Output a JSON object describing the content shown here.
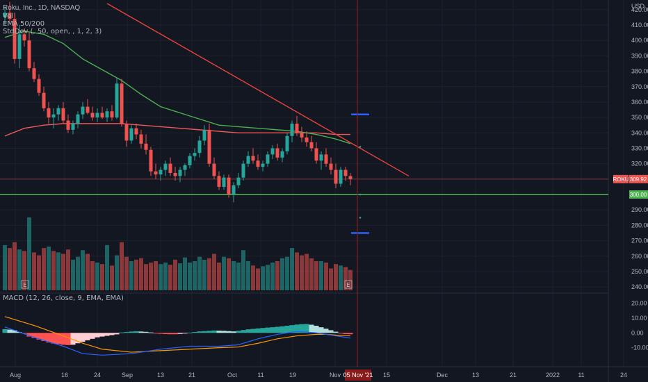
{
  "header": {
    "symbol": "Roku, Inc.",
    "interval": "1D",
    "exchange": "NASDAQ",
    "vol_label": "Vol",
    "ema_label": "EMA 50/200",
    "stddev_label": "StdDev (, 50, open, , 1, 2, 3)",
    "macd_label": "MACD (12, 26, close, 9, EMA, EMA)"
  },
  "price_axis": {
    "currency": "USD",
    "ticks": [
      "420.00",
      "410.00",
      "400.00",
      "390.00",
      "380.00",
      "370.00",
      "360.00",
      "350.00",
      "340.00",
      "330.00",
      "320.00",
      "310.00",
      "300.00",
      "290.00",
      "280.00",
      "270.00",
      "260.00",
      "250.00",
      "240.00"
    ],
    "last_price": "309.92",
    "last_price_tag": "ROKU",
    "hline_value": "300.00",
    "marker": "E"
  },
  "macd_axis": {
    "ticks": [
      "20.00",
      "10.00",
      "0.00",
      "-10.00"
    ]
  },
  "time_axis": {
    "labels": [
      "Aug",
      "16",
      "24",
      "Sep",
      "13",
      "21",
      "Oct",
      "11",
      "19",
      "Nov",
      "15",
      "Dec",
      "13",
      "21",
      "2022",
      "11",
      "24"
    ],
    "cursor_label": "05 Nov '21"
  },
  "colors": {
    "bg": "#131722",
    "up": "#26a69a",
    "down": "#ef5350",
    "ema50": "#4caf50",
    "ema200": "#f05a5a",
    "trendline": "#e8433c",
    "hline": "#4caf50",
    "cursor": "#8b1a1a",
    "macd_line": "#2962ff",
    "signal_line": "#ff9800",
    "stddev": "#2962ff"
  },
  "chart_data": [
    {
      "type": "candlestick",
      "title": "Roku, Inc., 1D, NASDAQ",
      "ylim": [
        236,
        424
      ],
      "hline": 300,
      "ohlc": [
        [
          415,
          422,
          410,
          418
        ],
        [
          418,
          425,
          412,
          414
        ],
        [
          414,
          418,
          385,
          388
        ],
        [
          388,
          410,
          382,
          404
        ],
        [
          404,
          408,
          396,
          400
        ],
        [
          400,
          405,
          380,
          382
        ],
        [
          382,
          386,
          373,
          375
        ],
        [
          375,
          378,
          364,
          366
        ],
        [
          366,
          370,
          354,
          356
        ],
        [
          356,
          360,
          346,
          350
        ],
        [
          350,
          356,
          343,
          352
        ],
        [
          352,
          358,
          348,
          356
        ],
        [
          356,
          360,
          346,
          348
        ],
        [
          348,
          352,
          340,
          342
        ],
        [
          342,
          348,
          339,
          346
        ],
        [
          346,
          354,
          343,
          352
        ],
        [
          352,
          360,
          349,
          357
        ],
        [
          357,
          362,
          352,
          353
        ],
        [
          353,
          357,
          348,
          350
        ],
        [
          350,
          356,
          347,
          353
        ],
        [
          353,
          357,
          349,
          350
        ],
        [
          350,
          356,
          347,
          354
        ],
        [
          354,
          358,
          348,
          350
        ],
        [
          350,
          376,
          349,
          372
        ],
        [
          372,
          375,
          344,
          346
        ],
        [
          346,
          348,
          331,
          335
        ],
        [
          335,
          345,
          333,
          343
        ],
        [
          343,
          346,
          336,
          339
        ],
        [
          339,
          342,
          330,
          333
        ],
        [
          333,
          339,
          326,
          329
        ],
        [
          329,
          331,
          312,
          315
        ],
        [
          315,
          320,
          310,
          313
        ],
        [
          313,
          318,
          309,
          316
        ],
        [
          316,
          322,
          312,
          320
        ],
        [
          320,
          324,
          312,
          314
        ],
        [
          314,
          318,
          309,
          312
        ],
        [
          312,
          318,
          308,
          316
        ],
        [
          316,
          320,
          312,
          319
        ],
        [
          319,
          327,
          317,
          325
        ],
        [
          325,
          330,
          322,
          327
        ],
        [
          327,
          338,
          324,
          335
        ],
        [
          335,
          345,
          332,
          342
        ],
        [
          342,
          346,
          318,
          320
        ],
        [
          320,
          324,
          310,
          312
        ],
        [
          312,
          315,
          303,
          305
        ],
        [
          305,
          313,
          303,
          311
        ],
        [
          311,
          313,
          298,
          300
        ],
        [
          300,
          308,
          295,
          306
        ],
        [
          306,
          314,
          304,
          311
        ],
        [
          311,
          322,
          309,
          320
        ],
        [
          320,
          328,
          318,
          325
        ],
        [
          325,
          330,
          320,
          322
        ],
        [
          322,
          326,
          316,
          318
        ],
        [
          318,
          322,
          315,
          320
        ],
        [
          320,
          328,
          318,
          326
        ],
        [
          326,
          332,
          323,
          330
        ],
        [
          330,
          333,
          322,
          324
        ],
        [
          324,
          330,
          321,
          328
        ],
        [
          328,
          340,
          326,
          338
        ],
        [
          338,
          348,
          334,
          346
        ],
        [
          346,
          351,
          338,
          340
        ],
        [
          340,
          344,
          334,
          337
        ],
        [
          337,
          341,
          331,
          334
        ],
        [
          334,
          338,
          328,
          330
        ],
        [
          330,
          334,
          320,
          322
        ],
        [
          322,
          328,
          316,
          326
        ],
        [
          326,
          330,
          318,
          320
        ],
        [
          320,
          324,
          313,
          316
        ],
        [
          316,
          320,
          304,
          307
        ],
        [
          307,
          318,
          305,
          316
        ],
        [
          316,
          318,
          309,
          312
        ],
        [
          312,
          314,
          306,
          310
        ]
      ],
      "ema50": [
        [
          0,
          402
        ],
        [
          4,
          406
        ],
        [
          8,
          404
        ],
        [
          12,
          398
        ],
        [
          16,
          388
        ],
        [
          20,
          381
        ],
        [
          24,
          374
        ],
        [
          28,
          365
        ],
        [
          32,
          357
        ],
        [
          36,
          353
        ],
        [
          40,
          349
        ],
        [
          44,
          345
        ],
        [
          48,
          344
        ],
        [
          52,
          343
        ],
        [
          56,
          342
        ],
        [
          60,
          341
        ],
        [
          64,
          339
        ],
        [
          68,
          336
        ],
        [
          71,
          333
        ]
      ],
      "ema200": [
        [
          0,
          338
        ],
        [
          4,
          343
        ],
        [
          8,
          345
        ],
        [
          12,
          346
        ],
        [
          16,
          346
        ],
        [
          20,
          346
        ],
        [
          24,
          346
        ],
        [
          28,
          345
        ],
        [
          32,
          344
        ],
        [
          36,
          343
        ],
        [
          40,
          342
        ],
        [
          44,
          341
        ],
        [
          48,
          340
        ],
        [
          52,
          340
        ],
        [
          56,
          340
        ],
        [
          60,
          340
        ],
        [
          64,
          340
        ],
        [
          68,
          339
        ],
        [
          71,
          339
        ]
      ],
      "trendline": [
        [
          21,
          424
        ],
        [
          83,
          312
        ]
      ],
      "stddev_bands": [
        352,
        331,
        300,
        285,
        275
      ]
    },
    {
      "type": "bar",
      "title": "Vol",
      "values": [
        62,
        58,
        66,
        56,
        54,
        100,
        52,
        48,
        58,
        60,
        54,
        52,
        50,
        56,
        42,
        46,
        55,
        50,
        40,
        38,
        36,
        62,
        34,
        48,
        66,
        46,
        40,
        42,
        44,
        36,
        38,
        40,
        36,
        38,
        35,
        42,
        37,
        45,
        38,
        40,
        46,
        42,
        44,
        50,
        38,
        46,
        44,
        40,
        38,
        55,
        40,
        34,
        30,
        33,
        35,
        38,
        40,
        44,
        46,
        58,
        52,
        48,
        50,
        44,
        40,
        40,
        38,
        30,
        36,
        34,
        32,
        28
      ],
      "up": [
        1,
        0,
        0,
        1,
        0,
        1,
        0,
        0,
        0,
        1,
        0,
        1,
        0,
        0,
        1,
        1,
        1,
        0,
        0,
        1,
        0,
        1,
        0,
        1,
        0,
        0,
        1,
        0,
        0,
        0,
        0,
        0,
        1,
        1,
        0,
        0,
        1,
        1,
        1,
        1,
        1,
        1,
        0,
        0,
        0,
        1,
        0,
        1,
        1,
        1,
        1,
        0,
        0,
        1,
        1,
        1,
        0,
        1,
        1,
        1,
        0,
        0,
        0,
        0,
        0,
        1,
        0,
        0,
        0,
        1,
        0,
        0
      ]
    },
    {
      "type": "macd",
      "title": "MACD (12, 26, close, 9, EMA, EMA)",
      "ylim": [
        -20,
        24
      ],
      "histogram": [
        2.5,
        2.2,
        1.8,
        0.6,
        -0.5,
        -2.5,
        -3.5,
        -4.5,
        -5.5,
        -6.5,
        -7.2,
        -7.5,
        -8,
        -8.2,
        -8,
        -7,
        -6,
        -5,
        -4,
        -3,
        -2.5,
        -2,
        -1.5,
        -1,
        0.3,
        0.6,
        0.9,
        1.1,
        0.9,
        0.7,
        0.3,
        -0.3,
        -0.6,
        -0.8,
        -0.9,
        -0.9,
        -0.7,
        -0.4,
        0.2,
        0.6,
        1,
        1.2,
        1.4,
        1.6,
        1.5,
        1.4,
        1.2,
        1,
        1.4,
        1.9,
        2.4,
        2.7,
        3,
        3.3,
        3.6,
        3.8,
        4.1,
        4.4,
        4.8,
        5.2,
        5.6,
        5.9,
        6,
        5.5,
        4.8,
        3.8,
        2.8,
        1.8,
        0.8,
        -0.4,
        -0.8,
        -0.9
      ],
      "macd": [
        [
          0,
          4
        ],
        [
          6,
          -3
        ],
        [
          12,
          -9
        ],
        [
          16,
          -14
        ],
        [
          20,
          -15
        ],
        [
          26,
          -14
        ],
        [
          32,
          -11
        ],
        [
          38,
          -9
        ],
        [
          44,
          -9
        ],
        [
          48,
          -8
        ],
        [
          52,
          -4
        ],
        [
          56,
          -1
        ],
        [
          60,
          1
        ],
        [
          64,
          0
        ],
        [
          66,
          -1
        ],
        [
          68,
          -2
        ],
        [
          71,
          -3.5
        ]
      ],
      "signal": [
        [
          0,
          11
        ],
        [
          6,
          5
        ],
        [
          12,
          -2
        ],
        [
          16,
          -7
        ],
        [
          20,
          -11
        ],
        [
          26,
          -13
        ],
        [
          32,
          -12
        ],
        [
          38,
          -11
        ],
        [
          44,
          -10
        ],
        [
          48,
          -9.5
        ],
        [
          52,
          -7
        ],
        [
          56,
          -4
        ],
        [
          60,
          -2
        ],
        [
          64,
          -1
        ],
        [
          66,
          -1
        ],
        [
          68,
          -1.5
        ],
        [
          71,
          -2
        ]
      ]
    }
  ]
}
